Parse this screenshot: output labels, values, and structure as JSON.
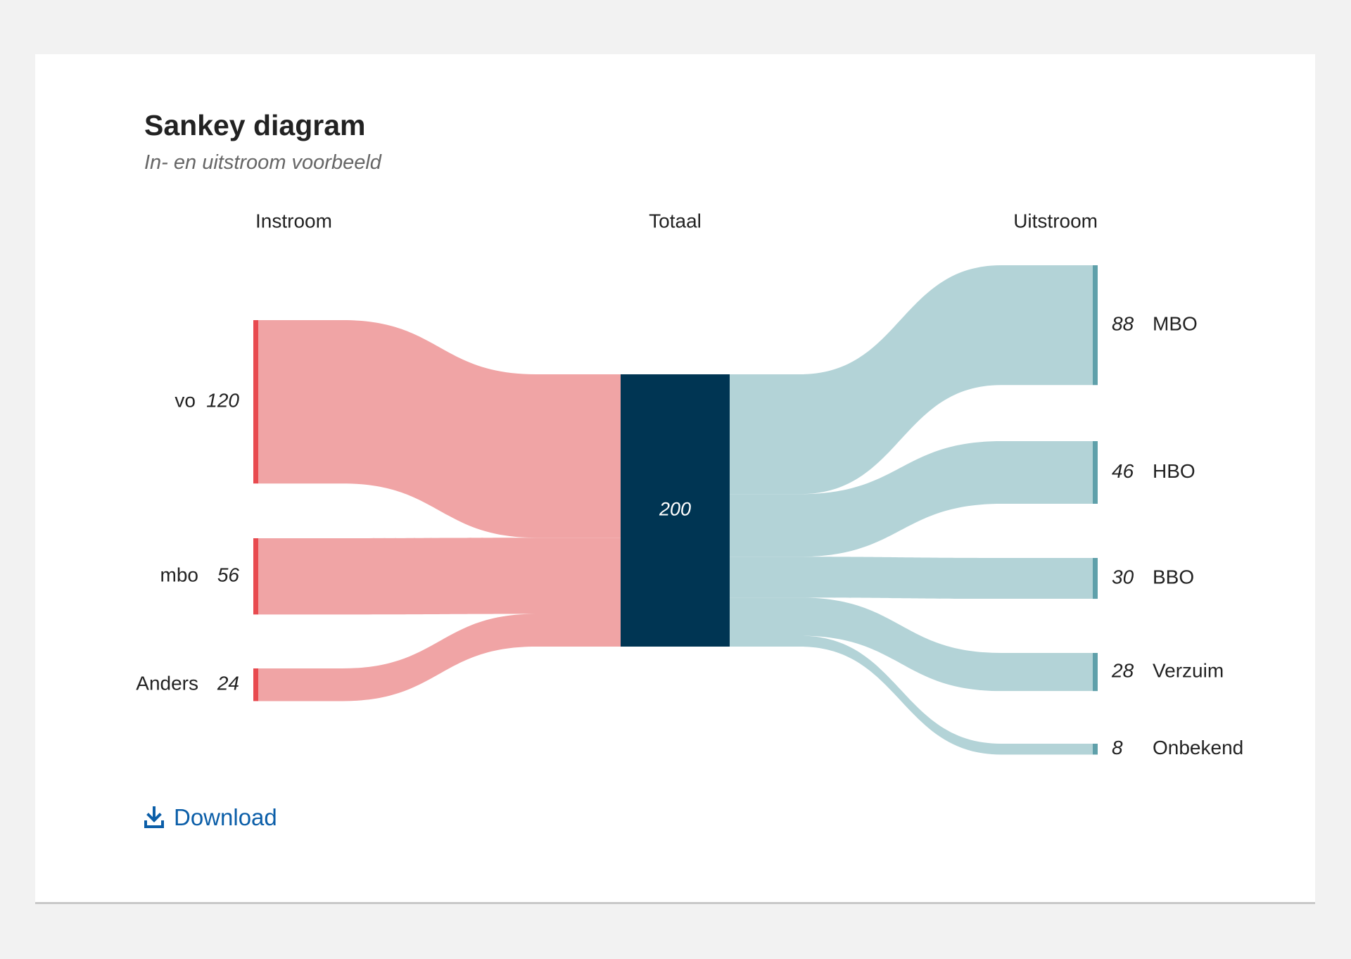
{
  "title": "Sankey diagram",
  "subtitle": "In- en uitstroom voorbeeld",
  "download_label": "Download",
  "icons": {
    "download": "download-icon"
  },
  "colors": {
    "inflow_link": "#f0a4a5",
    "inflow_node": "#e84a4f",
    "total_node": "#003553",
    "outflow_link": "#b3d3d7",
    "outflow_node": "#5fa0aa",
    "download_link": "#0b5ea8"
  },
  "chart_data": {
    "type": "sankey",
    "columns": [
      "Instroom",
      "Totaal",
      "Uitstroom"
    ],
    "inflows": [
      {
        "label": "vo",
        "value": 120
      },
      {
        "label": "mbo",
        "value": 56
      },
      {
        "label": "Anders",
        "value": 24
      }
    ],
    "total": {
      "value": 200
    },
    "outflows": [
      {
        "label": "MBO",
        "value": 88
      },
      {
        "label": "HBO",
        "value": 46
      },
      {
        "label": "BBO",
        "value": 30
      },
      {
        "label": "Verzuim",
        "value": 28
      },
      {
        "label": "Onbekend",
        "value": 8
      }
    ]
  }
}
